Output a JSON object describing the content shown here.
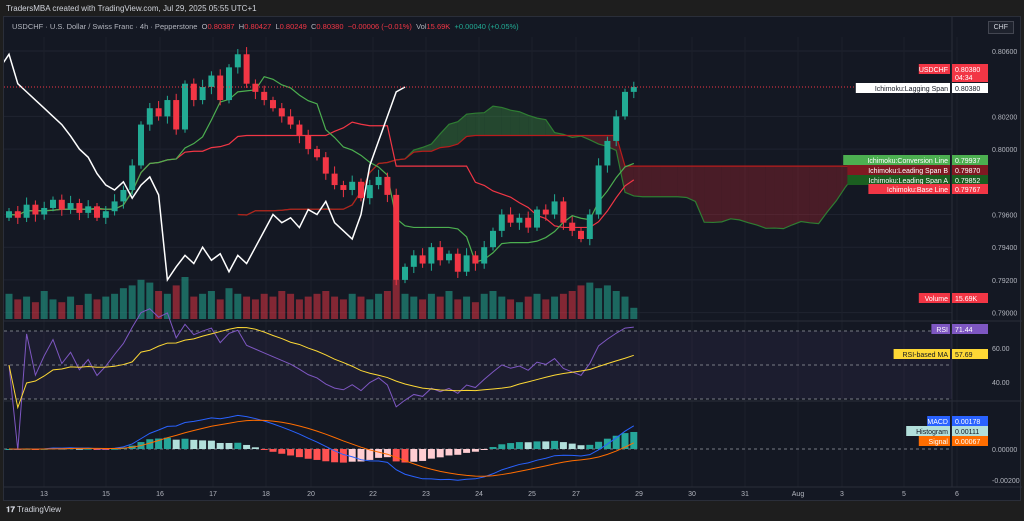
{
  "header": {
    "title": "TradersMBA created with TradingView.com, Jul 29, 2025 05:55 UTC+1"
  },
  "legend": {
    "symbol": "USDCHF · U.S. Dollar / Swiss Franc · 4h · Pepperstone",
    "o_label": "O",
    "open": "0.80387",
    "h_label": "H",
    "high": "0.80427",
    "l_label": "L",
    "low": "0.80249",
    "c_label": "C",
    "close": "0.80380",
    "change": "−0.00006 (−0.01%)",
    "vol_label": "Vol",
    "volume": "15.69K",
    "vol_change": "+0.00040 (+0.05%)"
  },
  "currency_button": "CHF",
  "price_axis": {
    "ticks": [
      "0.80600",
      "0.80200",
      "0.80000",
      "0.79600",
      "0.79400",
      "0.79200",
      "0.79000"
    ],
    "tick_values": [
      0.806,
      0.802,
      0.8,
      0.796,
      0.794,
      0.792,
      0.79
    ]
  },
  "labels": [
    {
      "name": "USDCHF",
      "value": "0.80380",
      "sub": "04:34",
      "color": "#f23645"
    },
    {
      "name": "Ichimoku:Lagging Span",
      "value": "0.80380",
      "color": "#ffffff"
    },
    {
      "name": "Ichimoku:Conversion Line",
      "value": "0.79937",
      "color": "#4caf50"
    },
    {
      "name": "Ichimoku:Leading Span B",
      "value": "0.79870",
      "color": "#801922"
    },
    {
      "name": "Ichimoku:Leading Span A",
      "value": "0.79852",
      "color": "#1b5e20"
    },
    {
      "name": "Ichimoku:Base Line",
      "value": "0.79767",
      "color": "#f23645"
    },
    {
      "name": "Volume",
      "value": "15.69K",
      "color": "#f23645"
    }
  ],
  "rsi": {
    "label": "RSI",
    "value": "71.44",
    "ma_label": "RSI-based MA",
    "ma_value": "57.69",
    "ticks": [
      "60.00",
      "40.00"
    ],
    "color": "#7e57c2",
    "ma_color": "#fdd835"
  },
  "macd": {
    "macd_label": "MACD",
    "macd_value": "0.00178",
    "hist_label": "Histogram",
    "hist_value": "0.00111",
    "signal_label": "Signal",
    "signal_value": "0.00067",
    "ticks": [
      "0.00000",
      "-0.00200"
    ],
    "macd_color": "#2962ff",
    "signal_color": "#ff6d00"
  },
  "time_axis": [
    "13",
    "15",
    "16",
    "17",
    "18",
    "20",
    "22",
    "23",
    "24",
    "25",
    "27",
    "29",
    "30",
    "31",
    "Aug",
    "3",
    "5",
    "6"
  ],
  "closes": [
    0.7962,
    0.7958,
    0.7966,
    0.796,
    0.7964,
    0.7969,
    0.7963,
    0.7967,
    0.7961,
    0.7965,
    0.7958,
    0.7962,
    0.7968,
    0.7975,
    0.799,
    0.8015,
    0.8025,
    0.802,
    0.803,
    0.8012,
    0.804,
    0.803,
    0.8038,
    0.8045,
    0.803,
    0.805,
    0.8058,
    0.804,
    0.8035,
    0.803,
    0.8025,
    0.802,
    0.8015,
    0.8008,
    0.8,
    0.7995,
    0.7985,
    0.7978,
    0.7975,
    0.798,
    0.797,
    0.7978,
    0.7983,
    0.7972,
    0.792,
    0.7928,
    0.7935,
    0.793,
    0.794,
    0.7932,
    0.7936,
    0.7925,
    0.7935,
    0.793,
    0.794,
    0.795,
    0.796,
    0.7955,
    0.7958,
    0.7952,
    0.7963,
    0.796,
    0.7968,
    0.7955,
    0.795,
    0.7945,
    0.796,
    0.799,
    0.8005,
    0.802,
    0.8035,
    0.8038
  ],
  "volumes": [
    9,
    7,
    8,
    6,
    10,
    7,
    6,
    8,
    5,
    9,
    7,
    8,
    9,
    11,
    12,
    14,
    13,
    10,
    9,
    12,
    15,
    8,
    9,
    10,
    7,
    11,
    9,
    8,
    7,
    9,
    8,
    10,
    9,
    7,
    8,
    9,
    10,
    8,
    7,
    9,
    8,
    7,
    9,
    10,
    14,
    9,
    8,
    7,
    9,
    8,
    10,
    7,
    8,
    6,
    9,
    10,
    8,
    7,
    6,
    8,
    9,
    7,
    8,
    9,
    10,
    12,
    13,
    11,
    12,
    10,
    8,
    4
  ],
  "footer": {
    "brand": "TradingView"
  }
}
